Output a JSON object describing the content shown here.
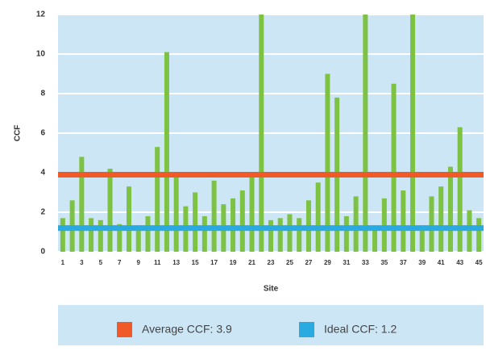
{
  "chart_data": {
    "type": "bar",
    "ylabel": "CCF",
    "xlabel": "Site",
    "categories": [
      "1",
      null,
      "3",
      null,
      "5",
      null,
      "7",
      null,
      "9",
      null,
      "11",
      null,
      "13",
      null,
      "15",
      null,
      "17",
      null,
      "19",
      null,
      "21",
      null,
      "23",
      null,
      "25",
      null,
      "27",
      null,
      "29",
      null,
      "31",
      null,
      "33",
      null,
      "35",
      null,
      "37",
      null,
      "39",
      null,
      "41",
      null,
      "43",
      null,
      "45"
    ],
    "values": [
      1.7,
      2.6,
      4.8,
      1.7,
      1.6,
      4.2,
      1.4,
      3.3,
      1.3,
      1.8,
      5.3,
      10.1,
      3.9,
      2.3,
      3.0,
      1.8,
      3.6,
      2.4,
      2.7,
      3.1,
      3.9,
      12,
      1.6,
      1.7,
      1.9,
      1.7,
      2.6,
      3.5,
      9.0,
      7.8,
      1.8,
      2.8,
      12,
      1.2,
      2.7,
      8.5,
      3.1,
      12,
      1.3,
      2.8,
      3.3,
      4.3,
      6.3,
      2.1,
      1.7
    ],
    "color": "#7dc242",
    "background": "#cce6f6",
    "ylim": [
      0,
      12
    ],
    "yticks": [
      0,
      2,
      4,
      6,
      8,
      10,
      12
    ],
    "grid": true,
    "reference_lines": [
      {
        "label": "Average CCF: 3.9",
        "value": 3.9,
        "color": "#f05a28"
      },
      {
        "label": "Ideal CCF: 1.2",
        "value": 1.2,
        "color": "#29abe2"
      }
    ]
  }
}
